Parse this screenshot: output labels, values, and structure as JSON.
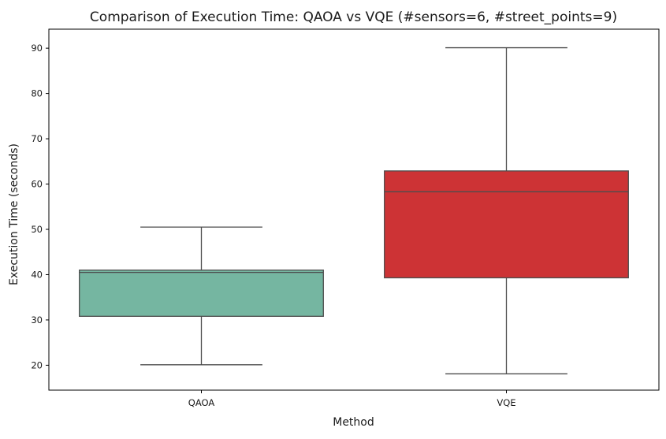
{
  "chart_data": {
    "type": "box",
    "title": "Comparison of Execution Time: QAOA vs VQE (#sensors=6, #street_points=9)",
    "xlabel": "Method",
    "ylabel": "Execution Time (seconds)",
    "ylim": [
      14.5,
      94.2
    ],
    "yticks": [
      20,
      30,
      40,
      50,
      60,
      70,
      80,
      90
    ],
    "grid": false,
    "categories": [
      "QAOA",
      "VQE"
    ],
    "boxes": [
      {
        "category": "QAOA",
        "whisker_low": 20.1,
        "q1": 30.8,
        "median": 40.5,
        "q3": 41.0,
        "whisker_high": 50.5,
        "color": "#75b6a1"
      },
      {
        "category": "VQE",
        "whisker_low": 18.1,
        "q1": 39.3,
        "median": 58.3,
        "q3": 62.9,
        "whisker_high": 90.1,
        "color": "#cd3335"
      }
    ]
  }
}
